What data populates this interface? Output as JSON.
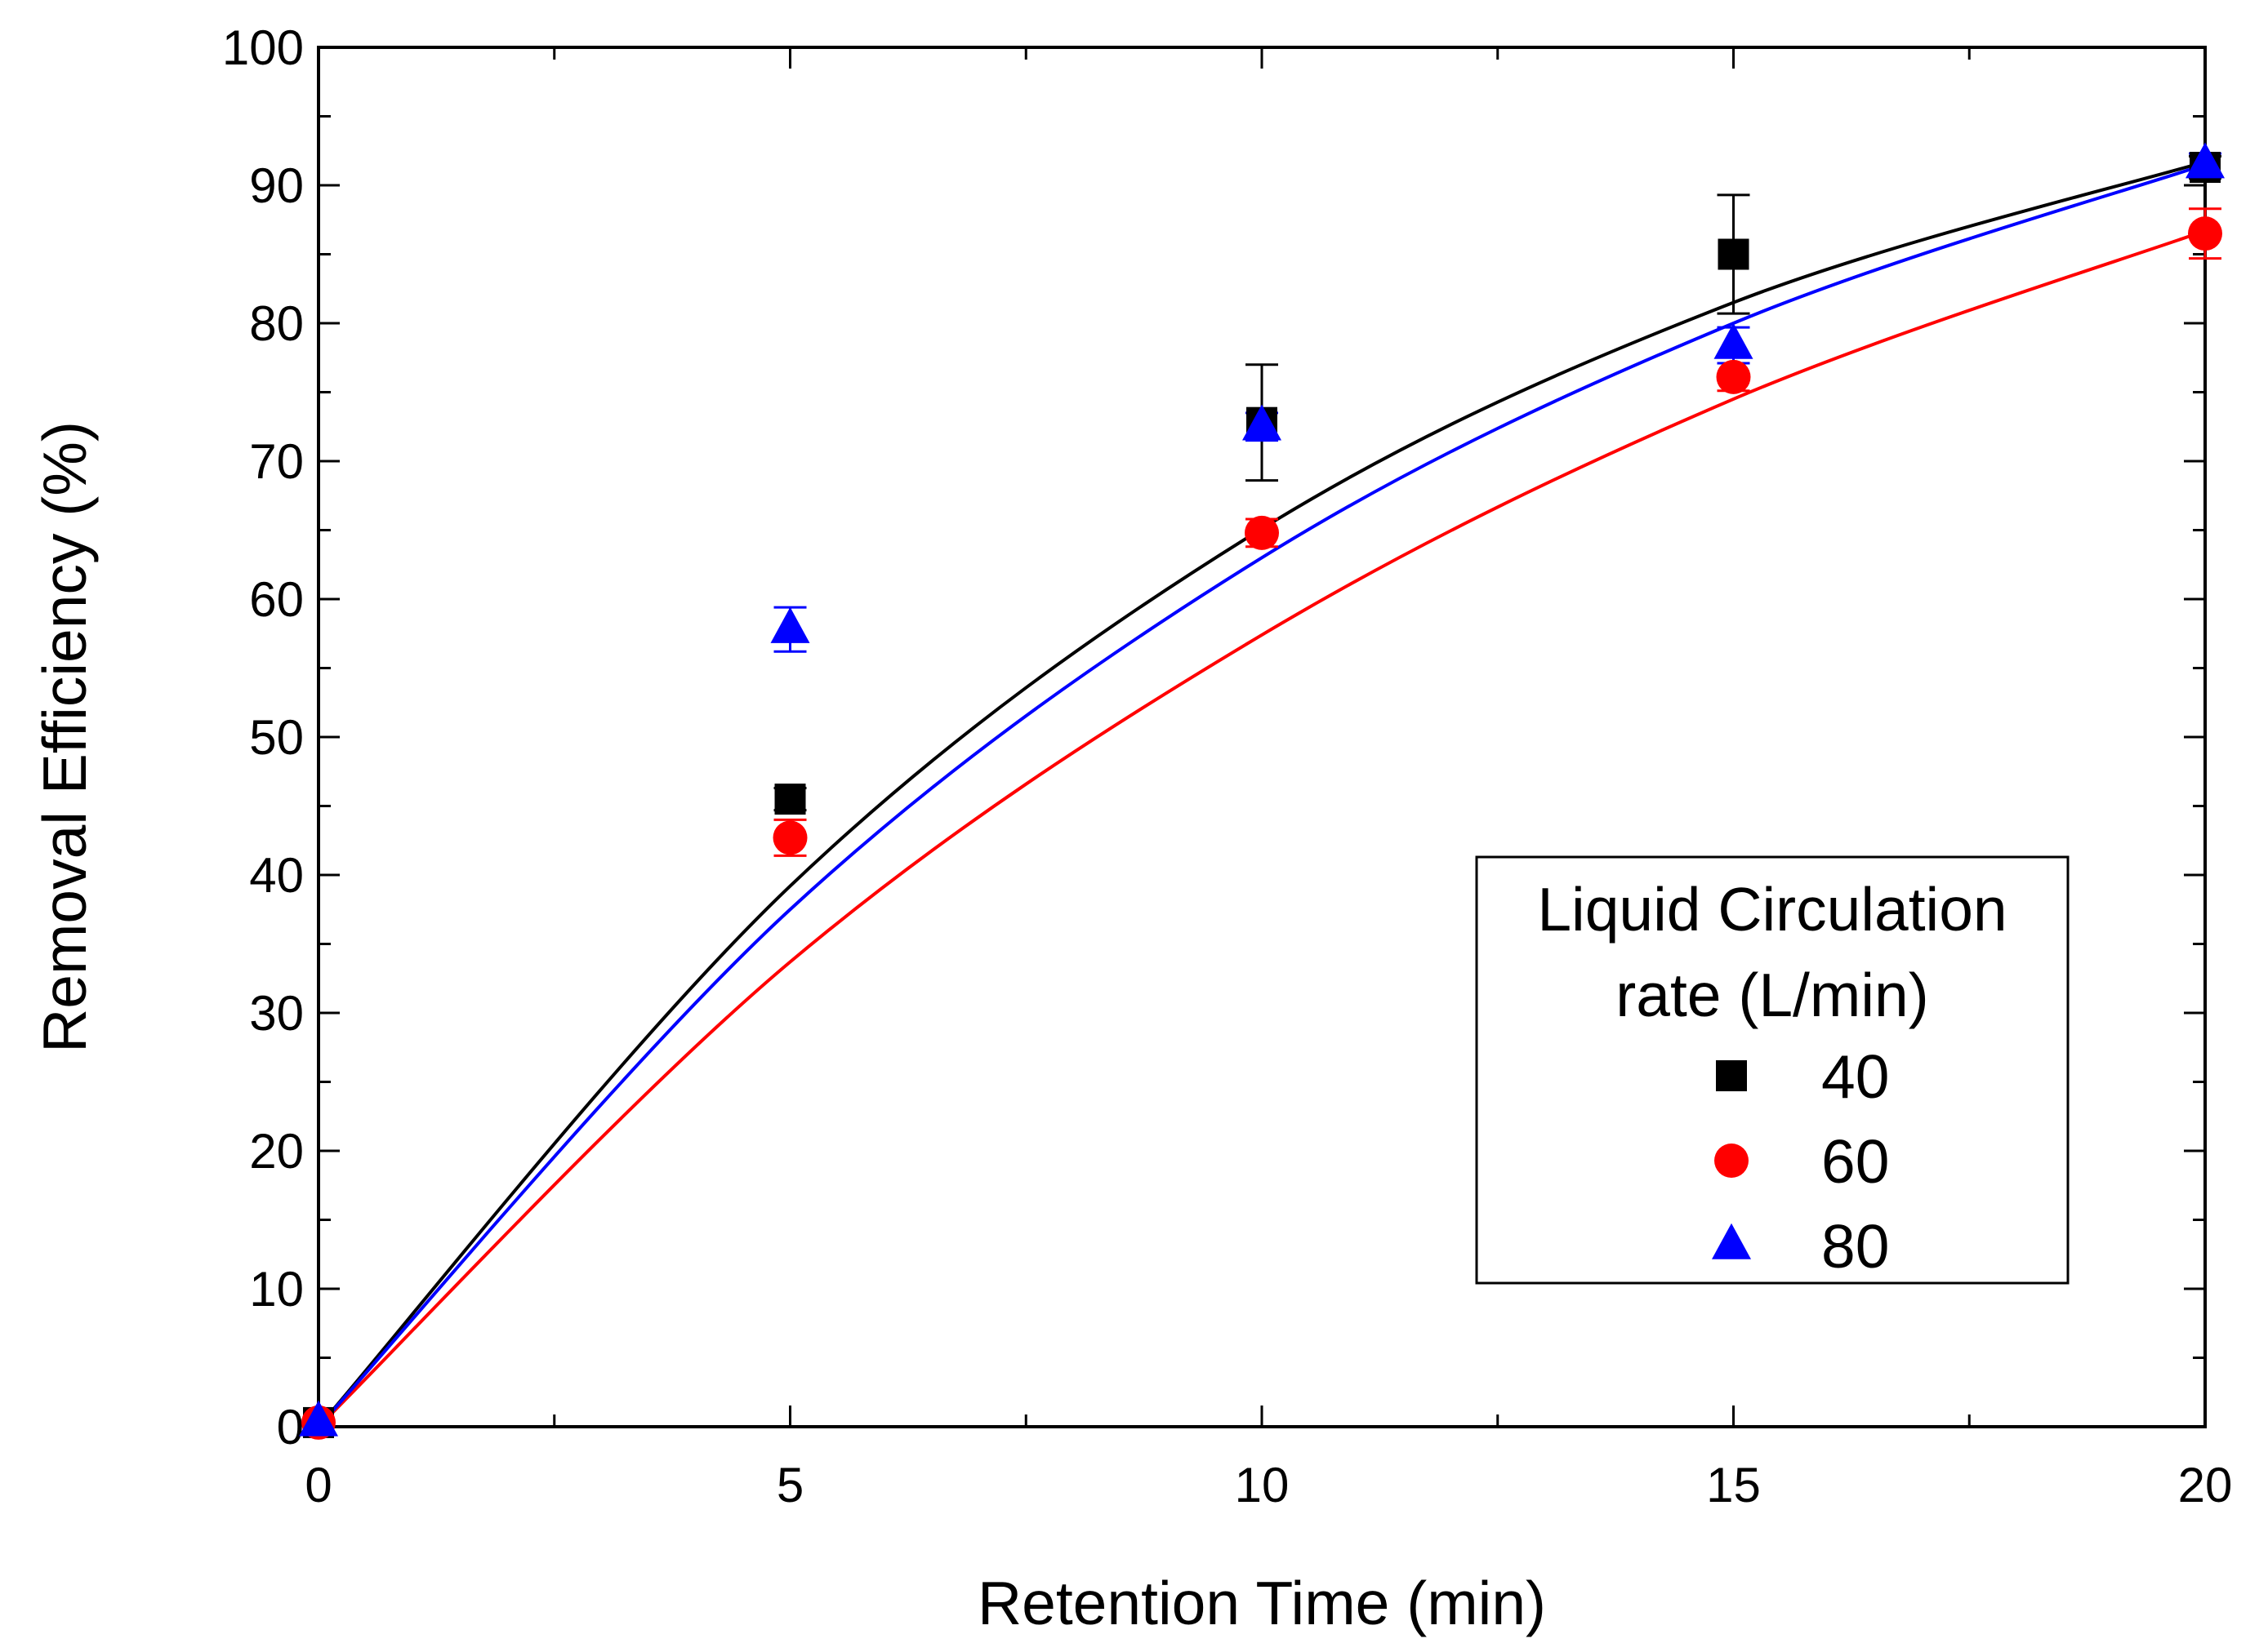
{
  "chart_data": {
    "type": "scatter",
    "title": "",
    "xlabel": "Retention Time (min)",
    "ylabel": "Removal Efficiency (%)",
    "xlim": [
      0,
      20
    ],
    "ylim": [
      0,
      100
    ],
    "x_ticks": [
      0,
      5,
      10,
      15,
      20
    ],
    "x_minor_step": 2.5,
    "y_ticks": [
      0,
      10,
      20,
      30,
      40,
      50,
      60,
      70,
      80,
      90,
      100
    ],
    "y_minor_step": 5,
    "grid": false,
    "legend": {
      "title_lines": [
        "Liquid Circulation",
        "rate (L/min)"
      ],
      "placement": "lower-right"
    },
    "series": [
      {
        "name": "40",
        "marker": "square",
        "color": "#000000",
        "x": [
          0,
          5,
          10,
          15,
          20
        ],
        "y": [
          0.3,
          45.5,
          72.8,
          85.0,
          91.3
        ],
        "error": [
          0,
          0.8,
          4.2,
          4.3,
          0.8
        ],
        "fit_y": [
          0,
          39.2,
          65.1,
          81.5,
          91.7
        ]
      },
      {
        "name": "60",
        "marker": "circle",
        "color": "#ff0000",
        "x": [
          0,
          5,
          10,
          15,
          20
        ],
        "y": [
          0.3,
          42.7,
          64.8,
          76.1,
          86.5
        ],
        "error": [
          0,
          1.3,
          1.0,
          1.0,
          1.8
        ],
        "fit_y": [
          0,
          33.7,
          57.4,
          74.5,
          86.7
        ]
      },
      {
        "name": "80",
        "marker": "triangle",
        "color": "#0000ff",
        "x": [
          0,
          5,
          10,
          15,
          20
        ],
        "y": [
          0.3,
          57.8,
          72.5,
          78.4,
          91.5
        ],
        "error": [
          0,
          1.6,
          1.0,
          1.3,
          0.8
        ],
        "fit_y": [
          0,
          37.5,
          63.0,
          80.0,
          91.5
        ]
      }
    ]
  }
}
